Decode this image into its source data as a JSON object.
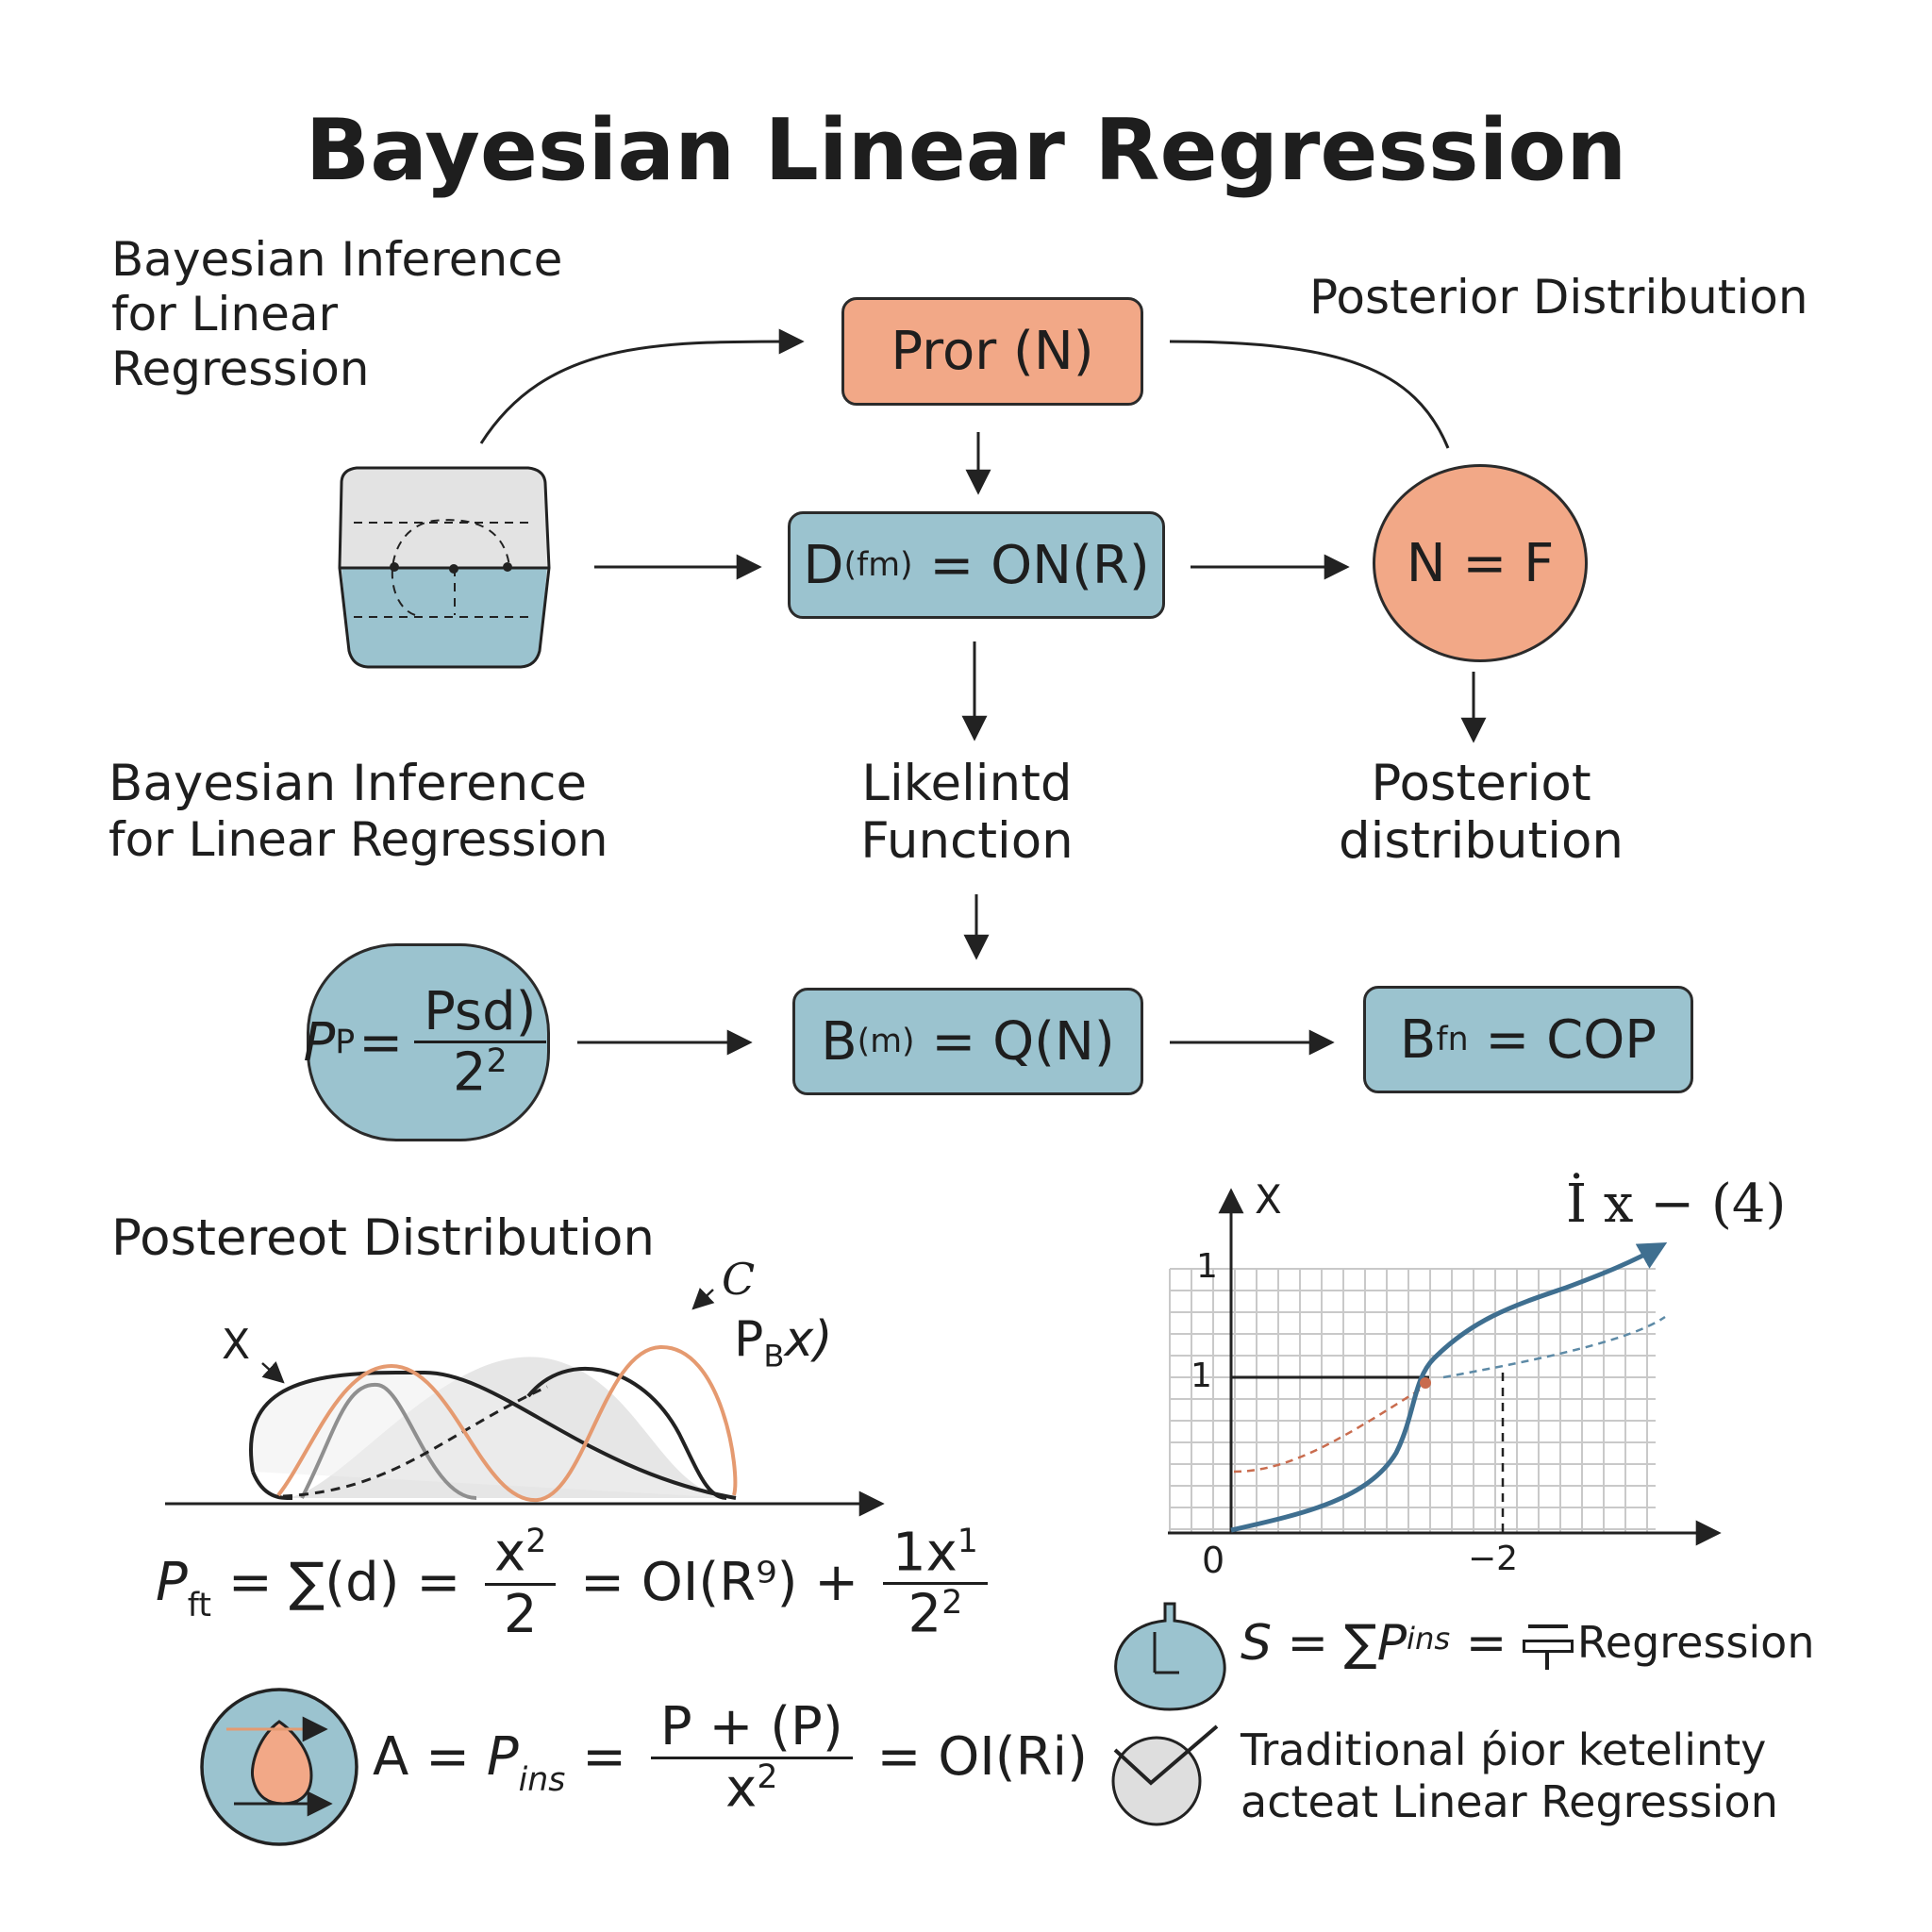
{
  "title": "Bayesian Linear Regression",
  "labels": {
    "top_left": [
      "Bayesian Inference",
      "for Linear",
      "Regression"
    ],
    "top_right": "Posterior Distribution",
    "mid_left": [
      "Bayesian Inference",
      "for Linear Regression"
    ],
    "likelihood": [
      "Likelintd",
      "Function"
    ],
    "posterior_mid": [
      "Posteriot",
      "distribution"
    ],
    "bottom_left_heading": "Postereot Distribution"
  },
  "nodes": {
    "prior": "Pror (N)",
    "data": {
      "base": "D",
      "sub": "(fm)",
      "rest": " = ON(R)"
    },
    "nf": "N = F",
    "pp": {
      "lhs": "P",
      "lhs_sub": "P",
      "num": "Psd)",
      "den": "2",
      "den_sup": "2"
    },
    "bfm": {
      "base": "B",
      "sub": "(m)",
      "rest": " = Q(N)"
    },
    "bfn": {
      "base": "B",
      "sub": "fn",
      "rest": " = COP"
    }
  },
  "curve_labels": {
    "x": "X",
    "c": "C",
    "pbx": "P",
    "pbx_sub": "B",
    "pbx_rest": "x)"
  },
  "formula_pft": {
    "lhs": "P",
    "lhs_sub": "ft",
    "sum": " = ∑(d) = ",
    "frac1_num": "x",
    "frac1_num_sup": "2",
    "frac1_den": "2",
    "mid": " = OI(R⁹) + ",
    "frac2_num": "1x",
    "frac2_num_sup": "1",
    "frac2_den": "2",
    "frac2_den_sup": "2"
  },
  "formula_a": {
    "lhs": "A = ",
    "p": "P",
    "p_sub": "ins",
    "eq": " = ",
    "num": "P + (P)",
    "den": "x",
    "den_sup": "2",
    "rhs": " = OI(Ri)"
  },
  "graph": {
    "y_label": "X",
    "top_label": "İ x − (4)",
    "tick_y_top": "1",
    "tick_y_mid": "1",
    "tick_x_origin": "0",
    "tick_x_right": "−2"
  },
  "formula_s": {
    "s": "S",
    "sum": " = ∑",
    "p": "P",
    "p_sub": "ins",
    "eq": " = ",
    "tail": "Regression"
  },
  "legend_text": [
    "Traditional ṕior ketelinty",
    "acteat Linear Regression"
  ],
  "icons": {
    "clock": "clock-icon",
    "check": "check-circle-icon",
    "drop": "drop-icon"
  },
  "colors": {
    "blue": "#9bc3cf",
    "orange": "#f2a887",
    "curve_blue": "#3f6f90",
    "curve_orange": "#e59a70"
  }
}
